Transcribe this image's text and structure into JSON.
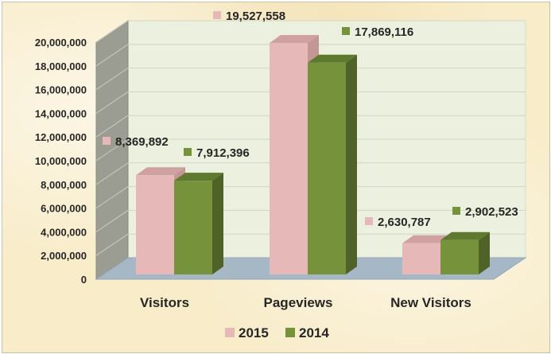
{
  "chart_data": {
    "type": "bar",
    "categories": [
      "Visitors",
      "Pageviews",
      "New Visitors"
    ],
    "series": [
      {
        "name": "2015",
        "values": [
          8369892,
          19527558,
          2630787
        ],
        "color": "#e6b8b7",
        "side": "#c49696",
        "top": "#cfa2a1"
      },
      {
        "name": "2014",
        "values": [
          7912396,
          17869116,
          2902523
        ],
        "color": "#76933c",
        "side": "#4f6228",
        "top": "#5e7a2f"
      }
    ],
    "value_labels": [
      [
        "8,369,892",
        "19,527,558",
        "2,630,787"
      ],
      [
        "7,912,396",
        "17,869,116",
        "2,902,523"
      ]
    ],
    "ylim": [
      0,
      20000000
    ],
    "yticks": [
      0,
      2000000,
      4000000,
      6000000,
      8000000,
      10000000,
      12000000,
      14000000,
      16000000,
      18000000,
      20000000
    ],
    "ytick_labels": [
      "0",
      "2,000,000",
      "4,000,000",
      "6,000,000",
      "8,000,000",
      "10,000,000",
      "12,000,000",
      "14,000,000",
      "16,000,000",
      "18,000,000",
      "20,000,000"
    ],
    "grid": true,
    "legend": "bottom",
    "style_3d": true,
    "title": "",
    "xlabel": "",
    "ylabel": ""
  }
}
